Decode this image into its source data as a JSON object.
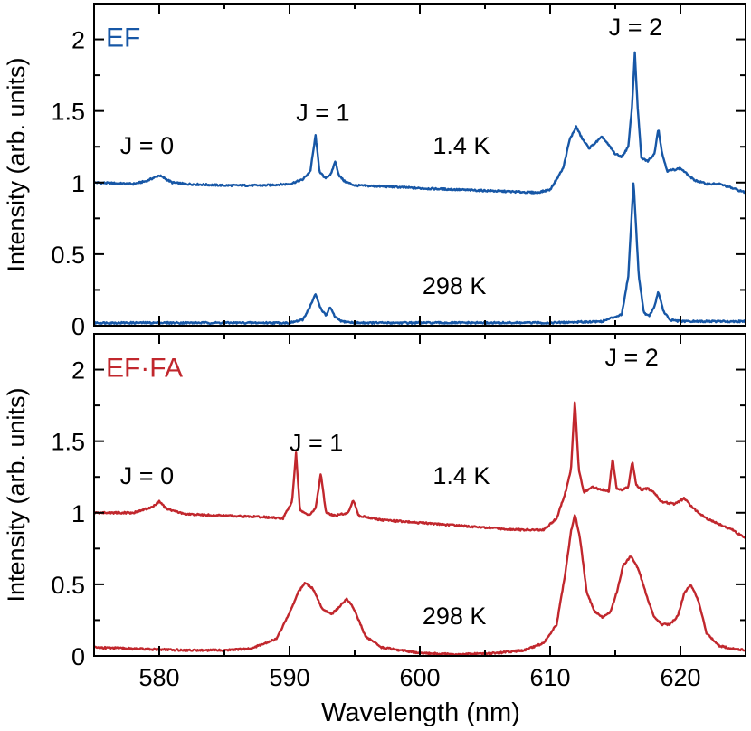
{
  "chart_data": [
    {
      "type": "line",
      "panel_label": "EF",
      "color": "#1757a6",
      "xlabel": "Wavelength (nm)",
      "ylabel": "Intensity (arb. units)",
      "xlim": [
        575,
        625
      ],
      "ylim": [
        0,
        2.25
      ],
      "x_ticks": [
        "580",
        "590",
        "600",
        "610",
        "620"
      ],
      "y_ticks": [
        "0",
        "0.5",
        "1",
        "1.5",
        "2"
      ],
      "annotations": [
        {
          "text": "J = 0",
          "x": 577,
          "y": 1.2
        },
        {
          "text": "J = 1",
          "x": 590.5,
          "y": 1.43
        },
        {
          "text": "J = 2",
          "x": 614.5,
          "y": 2.03
        },
        {
          "text": "1.4 K",
          "x": 601,
          "y": 1.2
        },
        {
          "text": "298 K",
          "x": 600.2,
          "y": 0.22
        }
      ],
      "series": [
        {
          "temperature": "1.4 K",
          "x": [
            575,
            578,
            579,
            580,
            581,
            582,
            585,
            588,
            590,
            591,
            591.6,
            592,
            592.3,
            592.7,
            593.2,
            593.5,
            593.8,
            594.2,
            595,
            598,
            600,
            603,
            606,
            609,
            610,
            611,
            611.5,
            612,
            612.5,
            613,
            613.5,
            614,
            614.5,
            615,
            615.5,
            616,
            616.3,
            616.5,
            616.7,
            617,
            617.5,
            618,
            618.3,
            618.6,
            619,
            620,
            621,
            622,
            623,
            624,
            625
          ],
          "y": [
            1.0,
            0.99,
            1.01,
            1.05,
            1.0,
            0.99,
            0.98,
            0.98,
            0.99,
            1.02,
            1.08,
            1.33,
            1.08,
            1.03,
            1.06,
            1.15,
            1.05,
            1.01,
            0.98,
            0.97,
            0.96,
            0.95,
            0.94,
            0.93,
            0.95,
            1.1,
            1.3,
            1.39,
            1.3,
            1.24,
            1.28,
            1.32,
            1.26,
            1.2,
            1.18,
            1.25,
            1.55,
            1.91,
            1.55,
            1.17,
            1.15,
            1.2,
            1.38,
            1.2,
            1.08,
            1.1,
            1.02,
            0.99,
            0.99,
            0.96,
            0.93
          ]
        },
        {
          "temperature": "298 K",
          "x": [
            575,
            580,
            585,
            590,
            591,
            591.5,
            592,
            592.4,
            592.8,
            593.1,
            593.5,
            594,
            595,
            600,
            605,
            610,
            614,
            615.5,
            616,
            616.4,
            616.8,
            617.2,
            617.6,
            618,
            618.3,
            618.7,
            619.2,
            620,
            625
          ],
          "y": [
            0.02,
            0.02,
            0.02,
            0.02,
            0.04,
            0.12,
            0.22,
            0.12,
            0.07,
            0.13,
            0.06,
            0.03,
            0.02,
            0.02,
            0.02,
            0.02,
            0.03,
            0.08,
            0.35,
            1.01,
            0.35,
            0.09,
            0.07,
            0.13,
            0.24,
            0.1,
            0.04,
            0.03,
            0.03
          ]
        }
      ]
    },
    {
      "type": "line",
      "panel_label": "EF·FA",
      "color": "#c1272d",
      "xlabel": "Wavelength (nm)",
      "ylabel": "Intensity (arb. units)",
      "xlim": [
        575,
        625
      ],
      "ylim": [
        0,
        2.25
      ],
      "x_ticks": [
        "580",
        "590",
        "600",
        "610",
        "620"
      ],
      "y_ticks": [
        "0",
        "0.5",
        "1",
        "1.5",
        "2"
      ],
      "annotations": [
        {
          "text": "J = 0",
          "x": 577,
          "y": 1.2
        },
        {
          "text": "J = 1",
          "x": 590,
          "y": 1.43
        },
        {
          "text": "J = 2",
          "x": 614.2,
          "y": 2.03
        },
        {
          "text": "1.4 K",
          "x": 601,
          "y": 1.2
        },
        {
          "text": "298 K",
          "x": 600.2,
          "y": 0.22
        }
      ],
      "series": [
        {
          "temperature": "1.4 K",
          "x": [
            575,
            578,
            579.5,
            580,
            580.5,
            582,
            585,
            588,
            589.5,
            590.2,
            590.5,
            590.8,
            591.5,
            592,
            592.4,
            592.8,
            593.5,
            594.5,
            594.9,
            595.3,
            597,
            600,
            603,
            606,
            608,
            609.5,
            610.5,
            611.2,
            611.6,
            611.9,
            612.2,
            612.6,
            613.2,
            614,
            614.5,
            614.8,
            615.1,
            615.5,
            616,
            616.3,
            616.6,
            617,
            617.5,
            618,
            618.5,
            619.5,
            620.3,
            621,
            622,
            623,
            624,
            625
          ],
          "y": [
            1.0,
            1.0,
            1.04,
            1.08,
            1.03,
            0.99,
            0.98,
            0.97,
            0.96,
            1.08,
            1.42,
            1.02,
            0.98,
            1.03,
            1.27,
            1.0,
            0.98,
            1.0,
            1.09,
            0.98,
            0.95,
            0.93,
            0.91,
            0.89,
            0.88,
            0.88,
            0.96,
            1.15,
            1.3,
            1.79,
            1.3,
            1.14,
            1.18,
            1.16,
            1.15,
            1.38,
            1.17,
            1.16,
            1.18,
            1.36,
            1.2,
            1.16,
            1.17,
            1.14,
            1.08,
            1.06,
            1.1,
            1.03,
            0.96,
            0.92,
            0.88,
            0.82
          ]
        },
        {
          "temperature": "298 K",
          "x": [
            575,
            578,
            582,
            585,
            587,
            589,
            590,
            590.7,
            591.2,
            591.8,
            592.5,
            593.2,
            593.8,
            594.4,
            595,
            595.8,
            597,
            600,
            603,
            606,
            608,
            609.5,
            610.5,
            611.2,
            611.6,
            611.9,
            612.3,
            612.8,
            613.4,
            614,
            614.6,
            615.1,
            615.6,
            616.2,
            616.8,
            617.4,
            618,
            618.6,
            619.2,
            619.8,
            620.3,
            620.8,
            621.4,
            622,
            623,
            624,
            625
          ],
          "y": [
            0.06,
            0.05,
            0.04,
            0.04,
            0.05,
            0.12,
            0.3,
            0.45,
            0.51,
            0.47,
            0.33,
            0.29,
            0.34,
            0.4,
            0.32,
            0.14,
            0.06,
            0.02,
            0.01,
            0.02,
            0.04,
            0.09,
            0.22,
            0.6,
            0.87,
            0.99,
            0.82,
            0.45,
            0.31,
            0.27,
            0.3,
            0.44,
            0.63,
            0.7,
            0.6,
            0.42,
            0.27,
            0.22,
            0.22,
            0.28,
            0.44,
            0.5,
            0.38,
            0.16,
            0.07,
            0.05,
            0.04
          ]
        }
      ]
    }
  ]
}
